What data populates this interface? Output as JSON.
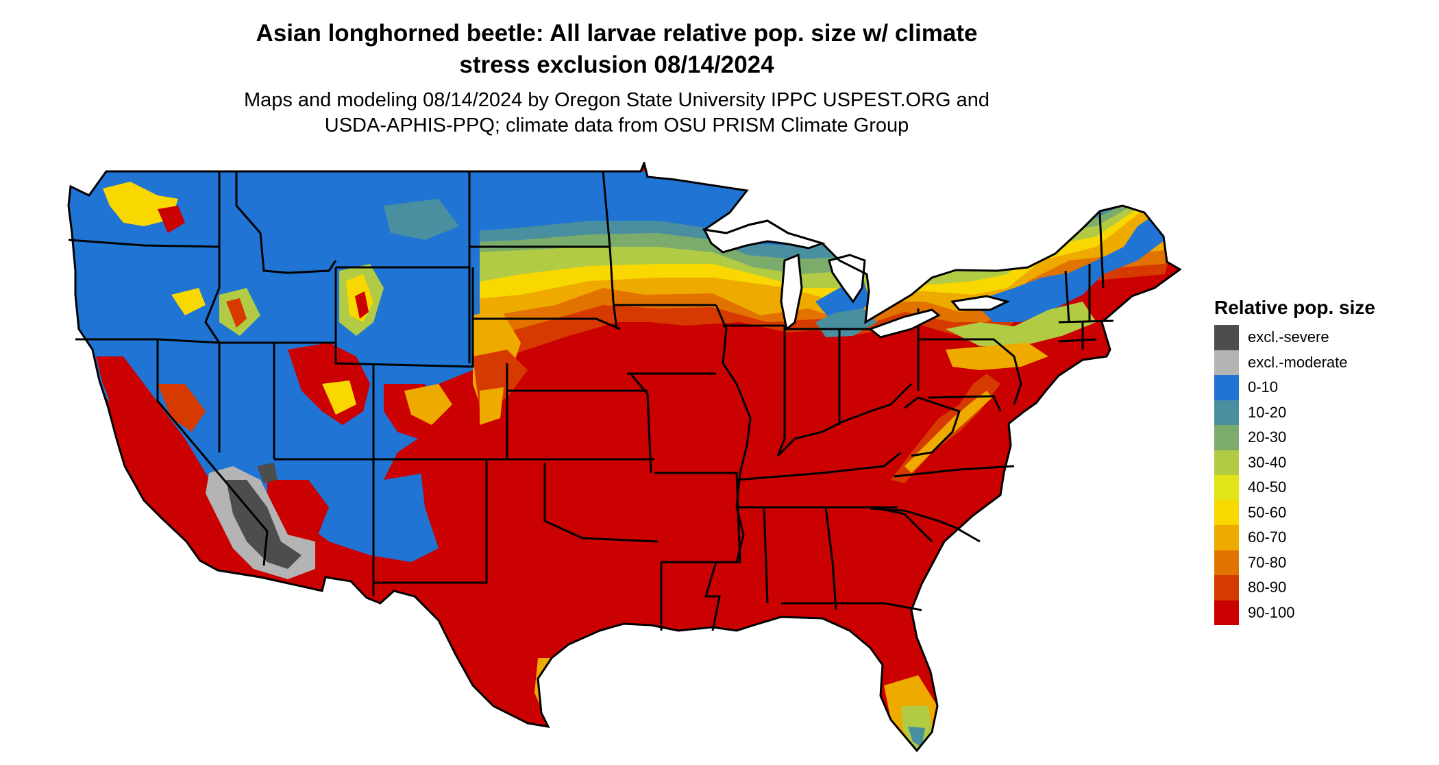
{
  "map": {
    "title_line1": "Asian longhorned beetle: All larvae relative pop. size w/ climate",
    "title_line2": "stress exclusion 08/14/2024",
    "subtitle_line1": "Maps and modeling 08/14/2024 by Oregon State University IPPC USPEST.ORG and",
    "subtitle_line2": "USDA-APHIS-PPQ; climate data from OSU PRISM Climate Group"
  },
  "legend": {
    "title": "Relative pop. size",
    "items": [
      {
        "label": "excl.-severe",
        "color": "#4d4d4d"
      },
      {
        "label": "excl.-moderate",
        "color": "#b4b4b4"
      },
      {
        "label": "0-10",
        "color": "#1f74d4"
      },
      {
        "label": "10-20",
        "color": "#4a8fa0"
      },
      {
        "label": "20-30",
        "color": "#7bac6c"
      },
      {
        "label": "30-40",
        "color": "#b1cc44"
      },
      {
        "label": "40-50",
        "color": "#e2e41a"
      },
      {
        "label": "50-60",
        "color": "#f8d800"
      },
      {
        "label": "60-70",
        "color": "#efaa00"
      },
      {
        "label": "70-80",
        "color": "#e37300"
      },
      {
        "label": "80-90",
        "color": "#d73a00"
      },
      {
        "label": "90-100",
        "color": "#cb0000"
      }
    ]
  }
}
